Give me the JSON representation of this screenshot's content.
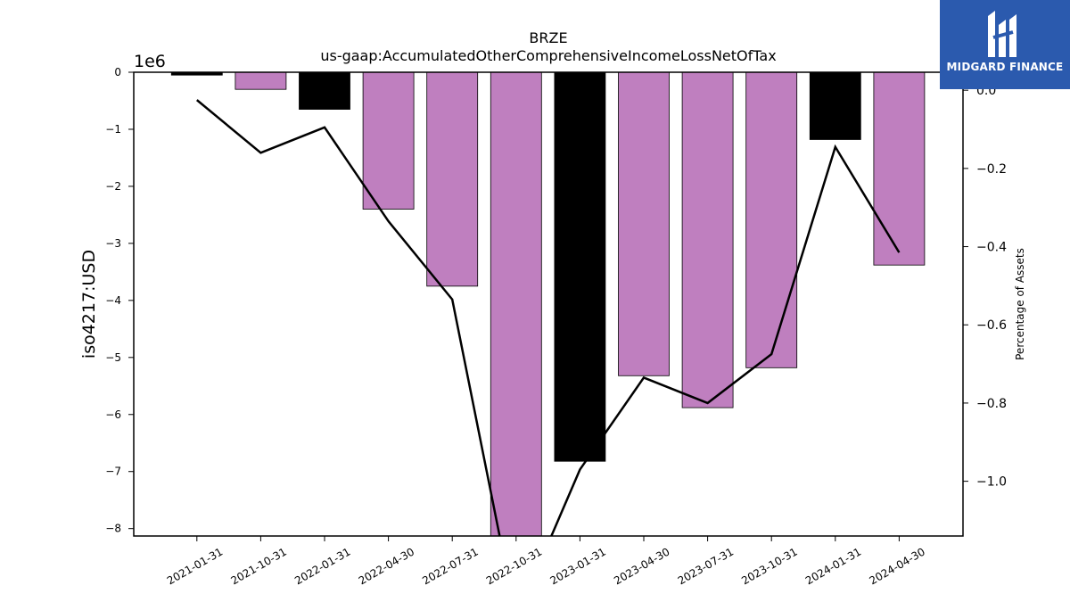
{
  "brand": {
    "name": "MIDGARD FINANCE",
    "bg_color": "#2b5aae"
  },
  "chart_data": {
    "type": "bar",
    "title": "BRZE",
    "subtitle": "us-gaap:AccumulatedOtherComprehensiveIncomeLossNetOfTax",
    "ylabel": "iso4217:USD",
    "y_multiplier_label": "1e6",
    "y2label": "Percentage of Assets",
    "categories": [
      "2021-01-31",
      "2021-10-31",
      "2022-01-31",
      "2022-04-30",
      "2022-07-31",
      "2022-10-31",
      "2023-01-31",
      "2023-04-30",
      "2023-07-31",
      "2023-10-31",
      "2024-01-31",
      "2024-04-30"
    ],
    "values": [
      -0.05,
      -0.3,
      -0.65,
      -2.4,
      -3.75,
      -8.4,
      -6.82,
      -5.32,
      -5.88,
      -5.18,
      -1.18,
      -3.38
    ],
    "bar_colors": [
      "#000000",
      "#bf7fbf",
      "#000000",
      "#bf7fbf",
      "#bf7fbf",
      "#bf7fbf",
      "#000000",
      "#bf7fbf",
      "#bf7fbf",
      "#bf7fbf",
      "#000000",
      "#bf7fbf"
    ],
    "ylim": [
      -8.13,
      0
    ],
    "yticks": [
      0,
      -1,
      -2,
      -3,
      -4,
      -5,
      -6,
      -7,
      -8
    ],
    "line_series": {
      "axis": "right",
      "values": [
        -0.025,
        -0.16,
        -0.095,
        -0.335,
        -0.535,
        -1.35,
        -0.97,
        -0.735,
        -0.8,
        -0.675,
        -0.145,
        -0.415
      ]
    },
    "y2lim": [
      -1.14,
      0.046
    ],
    "y2ticks": [
      0.0,
      -0.2,
      -0.4,
      -0.6,
      -0.8,
      -1.0
    ],
    "grid": false
  }
}
